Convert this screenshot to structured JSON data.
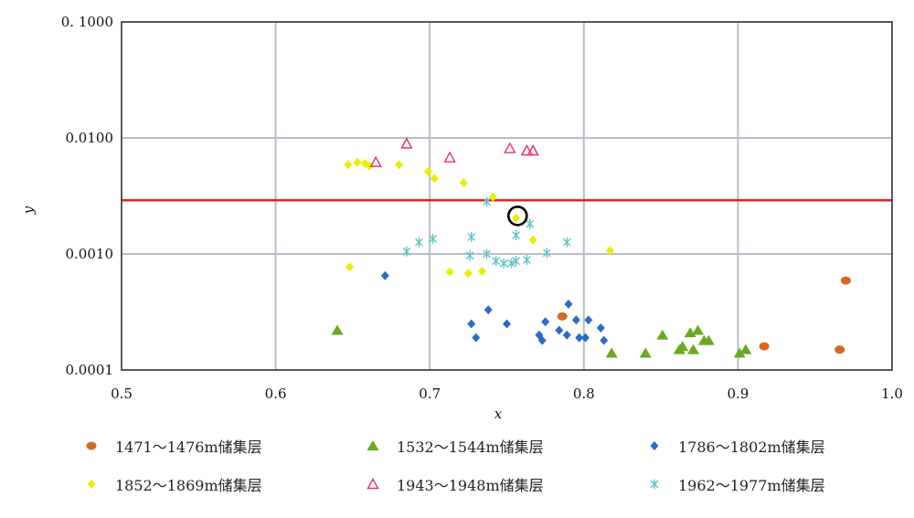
{
  "chart_data": {
    "type": "scatter",
    "xlabel": "x",
    "ylabel": "y",
    "xlim": [
      0.5,
      1.0
    ],
    "ylim": [
      0.0001,
      0.1
    ],
    "y_scale": "log",
    "grid": true,
    "x_ticks": [
      {
        "value": 0.5,
        "label": "0.5"
      },
      {
        "value": 0.6,
        "label": "0.6"
      },
      {
        "value": 0.7,
        "label": "0.7"
      },
      {
        "value": 0.8,
        "label": "0.8"
      },
      {
        "value": 0.9,
        "label": "0.9"
      },
      {
        "value": 1.0,
        "label": "1.0"
      }
    ],
    "y_ticks": [
      {
        "value": 0.0001,
        "label": "0.0001"
      },
      {
        "value": 0.001,
        "label": "0.0010"
      },
      {
        "value": 0.01,
        "label": "0.0100"
      },
      {
        "value": 0.1,
        "label": "0. 1000"
      }
    ],
    "reference_line": {
      "y": 0.0029,
      "color": "#ee1c1c"
    },
    "highlight": {
      "x": 0.757,
      "y": 0.00213,
      "color": "#000000"
    },
    "legend_position": "bottom",
    "series": [
      {
        "name": "1471～1476m储集层",
        "marker": "circle",
        "color": "#d2691e",
        "points": [
          [
            0.786,
            0.00029
          ],
          [
            0.917,
            0.00016
          ],
          [
            0.966,
            0.00015
          ],
          [
            0.97,
            0.00059
          ]
        ]
      },
      {
        "name": "1532～1544m储集层",
        "marker": "triangle",
        "color": "#6aaa1e",
        "points": [
          [
            0.64,
            0.00022
          ],
          [
            0.818,
            0.00014
          ],
          [
            0.84,
            0.00014
          ],
          [
            0.851,
            0.0002
          ],
          [
            0.862,
            0.00015
          ],
          [
            0.864,
            0.00016
          ],
          [
            0.869,
            0.00021
          ],
          [
            0.871,
            0.00015
          ],
          [
            0.874,
            0.00022
          ],
          [
            0.878,
            0.00018
          ],
          [
            0.881,
            0.00018
          ],
          [
            0.901,
            0.00014
          ],
          [
            0.905,
            0.00015
          ]
        ]
      },
      {
        "name": "1786～1802m储集层",
        "marker": "diamond",
        "color": "#2e6bc8",
        "points": [
          [
            0.671,
            0.00065
          ],
          [
            0.727,
            0.00025
          ],
          [
            0.73,
            0.00019
          ],
          [
            0.738,
            0.00033
          ],
          [
            0.75,
            0.00025
          ],
          [
            0.771,
            0.0002
          ],
          [
            0.773,
            0.00018
          ],
          [
            0.775,
            0.00026
          ],
          [
            0.784,
            0.00022
          ],
          [
            0.789,
            0.0002
          ],
          [
            0.79,
            0.00037
          ],
          [
            0.795,
            0.00027
          ],
          [
            0.797,
            0.00019
          ],
          [
            0.801,
            0.00019
          ],
          [
            0.803,
            0.00027
          ],
          [
            0.811,
            0.00023
          ],
          [
            0.813,
            0.00018
          ]
        ]
      },
      {
        "name": "1852～1869m储集层",
        "marker": "diamond",
        "color": "#e8f000",
        "points": [
          [
            0.647,
            0.00589
          ],
          [
            0.648,
            0.00077
          ],
          [
            0.653,
            0.00617
          ],
          [
            0.658,
            0.00603
          ],
          [
            0.661,
            0.00575
          ],
          [
            0.68,
            0.00589
          ],
          [
            0.699,
            0.00513
          ],
          [
            0.703,
            0.00447
          ],
          [
            0.713,
            0.0007
          ],
          [
            0.722,
            0.0041
          ],
          [
            0.725,
            0.00068
          ],
          [
            0.734,
            0.00071
          ],
          [
            0.741,
            0.00309
          ],
          [
            0.756,
            0.00204
          ],
          [
            0.767,
            0.00132
          ],
          [
            0.817,
            0.00107
          ]
        ]
      },
      {
        "name": "1943～1948m储集层",
        "marker": "triangle-open",
        "color": "#e8306a",
        "points": [
          [
            0.665,
            0.00617
          ],
          [
            0.685,
            0.00891
          ],
          [
            0.713,
            0.00676
          ],
          [
            0.752,
            0.00813
          ],
          [
            0.763,
            0.00776
          ],
          [
            0.767,
            0.00776
          ]
        ]
      },
      {
        "name": "1962～1977m储集层",
        "marker": "asterisk",
        "color": "#62c4c4",
        "points": [
          [
            0.685,
            0.00105
          ],
          [
            0.693,
            0.00126
          ],
          [
            0.702,
            0.00135
          ],
          [
            0.726,
            0.00097
          ],
          [
            0.727,
            0.0014
          ],
          [
            0.737,
            0.001
          ],
          [
            0.737,
            0.00282
          ],
          [
            0.743,
            0.00087
          ],
          [
            0.748,
            0.00083
          ],
          [
            0.753,
            0.00083
          ],
          [
            0.756,
            0.00145
          ],
          [
            0.756,
            0.00087
          ],
          [
            0.763,
            0.00089
          ],
          [
            0.765,
            0.00182
          ],
          [
            0.776,
            0.00102
          ],
          [
            0.789,
            0.00126
          ]
        ]
      }
    ]
  }
}
